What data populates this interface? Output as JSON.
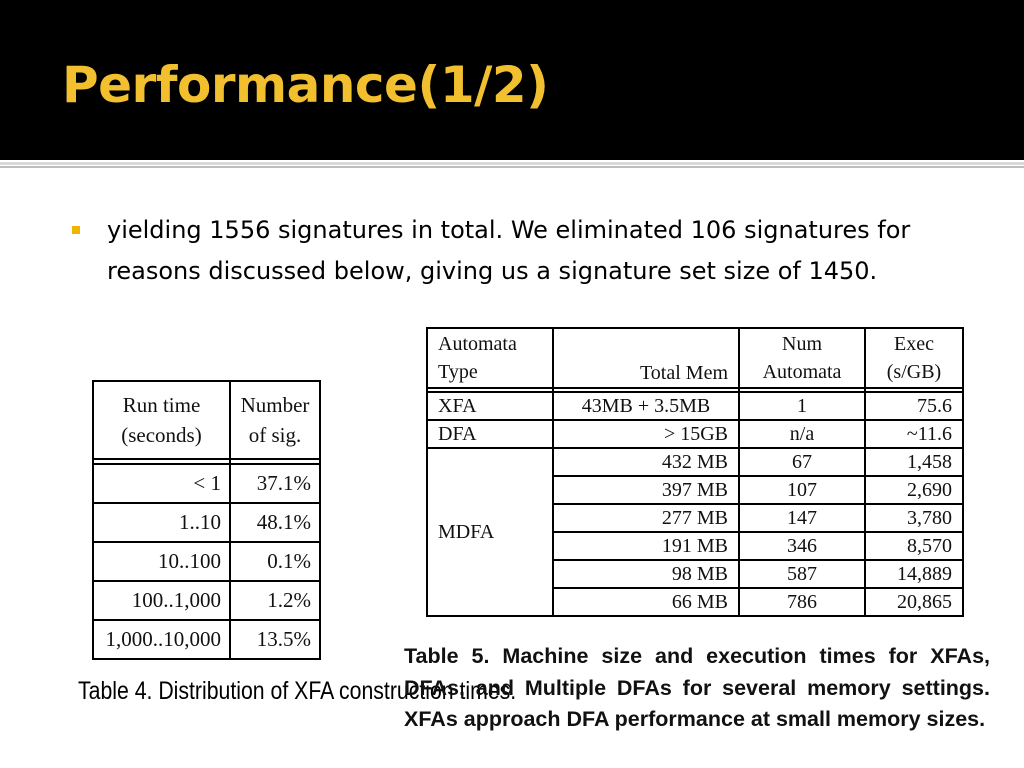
{
  "slide": {
    "title": "Performance(1/2)",
    "bullet_text": "yielding 1556 signatures in total. We eliminated 106 signatures for reasons discussed below, giving us a signature set size of 1450."
  },
  "table4": {
    "headers": [
      "Run time (seconds)",
      "Number of sig."
    ],
    "rows": [
      [
        "< 1",
        "37.1%"
      ],
      [
        "1..10",
        "48.1%"
      ],
      [
        "10..100",
        "0.1%"
      ],
      [
        "100..1,000",
        "1.2%"
      ],
      [
        "1,000..10,000",
        "13.5%"
      ]
    ],
    "caption": "Table 4. Distribution of XFA construction times."
  },
  "table5": {
    "headers": [
      "Automata Type",
      "Total Mem",
      "Num Automata",
      "Exec (s/GB)"
    ],
    "rows": [
      [
        "XFA",
        "43MB + 3.5MB",
        "1",
        "75.6"
      ],
      [
        "DFA",
        "> 15GB",
        "n/a",
        "~11.6"
      ],
      [
        "MDFA",
        "432 MB",
        "67",
        "1,458"
      ],
      [
        "",
        "397 MB",
        "107",
        "2,690"
      ],
      [
        "",
        "277 MB",
        "147",
        "3,780"
      ],
      [
        "",
        "191 MB",
        "346",
        "8,570"
      ],
      [
        "",
        "98 MB",
        "587",
        "14,889"
      ],
      [
        "",
        "66 MB",
        "786",
        "20,865"
      ]
    ],
    "caption": "Table 5. Machine size and execution times for XFAs, DFAs, and Multiple DFAs for several memory settings. XFAs approach DFA performance at small memory sizes."
  }
}
